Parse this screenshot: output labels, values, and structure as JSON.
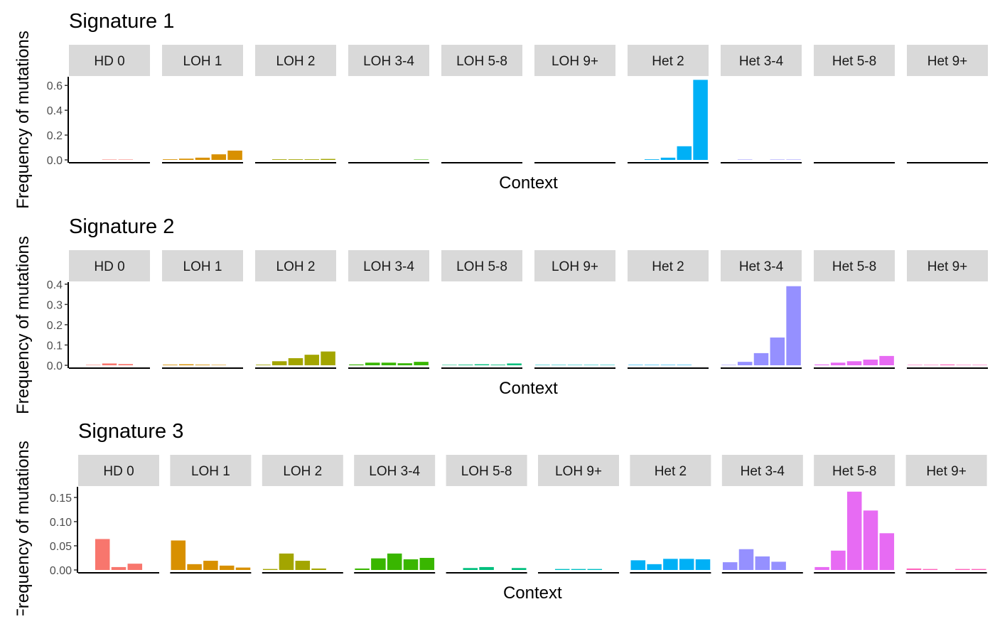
{
  "colors": {
    "categories": [
      "#F8766D",
      "#D89000",
      "#A3A500",
      "#39B600",
      "#00BF7D",
      "#00BFC4",
      "#00B0F6",
      "#9590FF",
      "#E76BF3",
      "#FF62BC"
    ],
    "strip_fill": "#d9d9d9",
    "axis": "#000000",
    "tick_text": "#4d4d4d"
  },
  "chart_data": [
    {
      "type": "bar",
      "title": "Signature 1",
      "xlabel": "Context",
      "ylabel": "Frequency of mutations",
      "ylim": [
        0,
        0.67
      ],
      "yticks": [
        0.0,
        0.2,
        0.4,
        0.6
      ],
      "ytick_labels": [
        "0.0",
        "0.2",
        "0.4",
        "0.6"
      ],
      "facets": [
        {
          "label": "HD 0",
          "values": [
            0.0,
            0.003,
            0.003
          ]
        },
        {
          "label": "LOH 1",
          "values": [
            0.005,
            0.01,
            0.018,
            0.045,
            0.075
          ]
        },
        {
          "label": "LOH 2",
          "values": [
            0.0,
            0.005,
            0.005,
            0.005,
            0.008
          ]
        },
        {
          "label": "LOH 3-4",
          "values": [
            0.0,
            0.0,
            0.0,
            0.0,
            0.003
          ]
        },
        {
          "label": "LOH 5-8",
          "values": [
            0.0,
            0.0,
            0.0,
            0.0,
            0.0
          ]
        },
        {
          "label": "LOH 9+",
          "values": [
            0.0,
            0.0,
            0.0,
            0.0,
            0.0
          ]
        },
        {
          "label": "Het 2",
          "values": [
            0.0,
            0.005,
            0.018,
            0.11,
            0.645
          ]
        },
        {
          "label": "Het 3-4",
          "values": [
            0.0,
            0.003,
            0.0,
            0.003,
            0.003
          ]
        },
        {
          "label": "Het 5-8",
          "values": [
            0.0,
            0.0,
            0.0,
            0.0,
            0.0
          ]
        },
        {
          "label": "Het 9+",
          "values": [
            0.0,
            0.0,
            0.0,
            0.0,
            0.0
          ]
        }
      ]
    },
    {
      "type": "bar",
      "title": "Signature 2",
      "xlabel": "Context",
      "ylabel": "Frequency of mutations",
      "ylim": [
        0,
        0.41
      ],
      "yticks": [
        0.0,
        0.1,
        0.2,
        0.3,
        0.4
      ],
      "ytick_labels": [
        "0.0",
        "0.1",
        "0.2",
        "0.3",
        "0.4"
      ],
      "facets": [
        {
          "label": "HD 0",
          "values": [
            0.002,
            0.009,
            0.006
          ]
        },
        {
          "label": "LOH 1",
          "values": [
            0.003,
            0.005,
            0.003,
            0.002,
            0.0
          ]
        },
        {
          "label": "LOH 2",
          "values": [
            0.003,
            0.02,
            0.035,
            0.052,
            0.068
          ]
        },
        {
          "label": "LOH 3-4",
          "values": [
            0.004,
            0.013,
            0.013,
            0.01,
            0.017
          ]
        },
        {
          "label": "LOH 5-8",
          "values": [
            0.002,
            0.003,
            0.005,
            0.003,
            0.009
          ]
        },
        {
          "label": "LOH 9+",
          "values": [
            0.002,
            0.002,
            0.002,
            0.002,
            0.002
          ]
        },
        {
          "label": "Het 2",
          "values": [
            0.002,
            0.002,
            0.002,
            0.002,
            0.0
          ]
        },
        {
          "label": "Het 3-4",
          "values": [
            0.002,
            0.017,
            0.06,
            0.137,
            0.39
          ]
        },
        {
          "label": "Het 5-8",
          "values": [
            0.004,
            0.013,
            0.02,
            0.028,
            0.046
          ]
        },
        {
          "label": "Het 9+",
          "values": [
            0.002,
            0.002,
            0.004,
            0.002,
            0.002
          ]
        }
      ]
    },
    {
      "type": "bar",
      "title": "Signature 3",
      "xlabel": "Context",
      "ylabel": "Frequency of mutations",
      "ylim": [
        0,
        0.172
      ],
      "yticks": [
        0.0,
        0.05,
        0.1,
        0.15
      ],
      "ytick_labels": [
        "0.00",
        "0.05",
        "0.10",
        "0.15"
      ],
      "facets": [
        {
          "label": "HD 0",
          "values": [
            0.064,
            0.006,
            0.013
          ]
        },
        {
          "label": "LOH 1",
          "values": [
            0.061,
            0.012,
            0.019,
            0.009,
            0.005
          ]
        },
        {
          "label": "LOH 2",
          "values": [
            0.002,
            0.034,
            0.019,
            0.003,
            0.0
          ]
        },
        {
          "label": "LOH 3-4",
          "values": [
            0.003,
            0.024,
            0.034,
            0.022,
            0.025
          ]
        },
        {
          "label": "LOH 5-8",
          "values": [
            0.0,
            0.004,
            0.006,
            0.0,
            0.004
          ]
        },
        {
          "label": "LOH 9+",
          "values": [
            0.0,
            0.002,
            0.002,
            0.002,
            0.0
          ]
        },
        {
          "label": "Het 2",
          "values": [
            0.02,
            0.012,
            0.023,
            0.023,
            0.022
          ]
        },
        {
          "label": "Het 3-4",
          "values": [
            0.016,
            0.043,
            0.028,
            0.017,
            0.0
          ]
        },
        {
          "label": "Het 5-8",
          "values": [
            0.006,
            0.04,
            0.162,
            0.123,
            0.076
          ]
        },
        {
          "label": "Het 9+",
          "values": [
            0.003,
            0.002,
            0.0,
            0.002,
            0.002
          ]
        }
      ]
    }
  ]
}
